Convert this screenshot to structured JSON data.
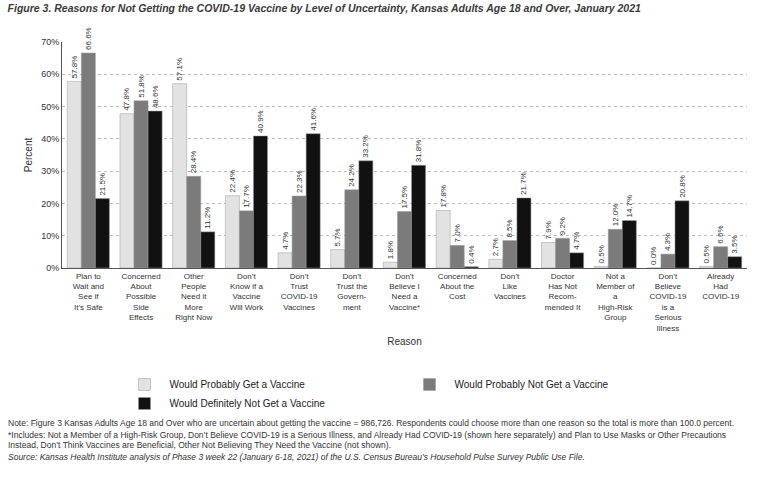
{
  "chart_data": {
    "type": "bar",
    "title": "Figure 3. Reasons for Not Getting the COVID-19 Vaccine by Level of Uncertainty, Kansas Adults Age 18 and Over, January 2021",
    "x_label": "Reason",
    "y_label": "Percent",
    "categories": [
      "Plan to Wait and See if It’s Safe",
      "Concerned About Possible Side Effects",
      "Other People Need it More Right Now",
      "Don’t Know if a Vaccine Will Work",
      "Don’t Trust COVID-19 Vaccines",
      "Don’t Trust the Govern- ment",
      "Don’t Believe I Need a Vaccine*",
      "Concerned About the Cost",
      "Don’t Like Vaccines",
      "Doctor Has Not Recom- mended It",
      "Not a Member of a High-Risk Group",
      "Don’t Believe COVID-19 is a Serious Illness",
      "Already Had COVID-19"
    ],
    "series": [
      {
        "name": "Would Probably Get a Vaccine",
        "color": "#e2e2e2",
        "values": [
          57.8,
          47.8,
          57.1,
          22.4,
          4.7,
          5.7,
          1.8,
          17.8,
          2.7,
          7.9,
          0.5,
          0.0,
          0.5
        ],
        "value_labels": [
          "57.8%",
          "47.8%",
          "57.1%",
          "22.4%",
          "4.7%",
          "5.7%",
          "1.8%",
          "17.8%",
          "2.7%",
          "7.9%",
          "0.5%",
          "0.0%",
          "0.5%"
        ]
      },
      {
        "name": "Would Probably Not Get a Vaccine",
        "color": "#7b7b7b",
        "values": [
          66.6,
          51.8,
          28.4,
          17.7,
          22.3,
          24.2,
          17.5,
          7.0,
          8.5,
          9.2,
          12.0,
          4.3,
          6.6
        ],
        "value_labels": [
          "66.6%",
          "51.8%",
          "28.4%",
          "17.7%",
          "22.3%",
          "24.2%",
          "17.5%",
          "7.0%",
          "8.5%",
          "9.2%",
          "12.0%",
          "4.3%",
          "6.6%"
        ]
      },
      {
        "name": "Would Definitely Not Get a Vaccine",
        "color": "#111111",
        "values": [
          21.5,
          48.6,
          11.2,
          40.9,
          41.6,
          33.2,
          31.8,
          0.4,
          21.7,
          4.7,
          14.7,
          20.8,
          3.5
        ],
        "value_labels": [
          "21.5%",
          "48.6%",
          "11.2%",
          "40.9%",
          "41.6%",
          "33.2%",
          "31.8%",
          "0.4%",
          "21.7%",
          "4.7%",
          "14.7%",
          "20.8%",
          "3.5%"
        ]
      }
    ],
    "ylim": [
      0,
      70
    ],
    "yticks": [
      {
        "value": 0,
        "label": "0%"
      },
      {
        "value": 10,
        "label": "10%"
      },
      {
        "value": 20,
        "label": "20%"
      },
      {
        "value": 30,
        "label": "30%"
      },
      {
        "value": 40,
        "label": "40%"
      },
      {
        "value": 50,
        "label": "50%"
      },
      {
        "value": 60,
        "label": "60%"
      },
      {
        "value": 70,
        "label": "70%"
      }
    ],
    "grid": true,
    "legend": "bottom",
    "data_labels": true,
    "annotations": [
      "Note: Figure 3 Kansas Adults Age 18 and Over who are uncertain about getting the vaccine = 986,726. Respondents could choose more than one reason so the total is more than 100.0 percent.",
      "*Includes: Not a Member of a High-Risk Group, Don’t Believe COVID-19 is a Serious Illness, and Already Had COVID-19 (shown here separately) and Plan to Use Masks or Other Precautions Instead, Don’t Think Vaccines are Beneficial, Other Not Believing They Need the Vaccine (not shown).",
      "Source: Kansas Health Institute analysis of Phase 3 week 22 (January 6-18, 2021) of the U.S. Census Bureau’s Household Pulse Survey Public Use File."
    ]
  }
}
